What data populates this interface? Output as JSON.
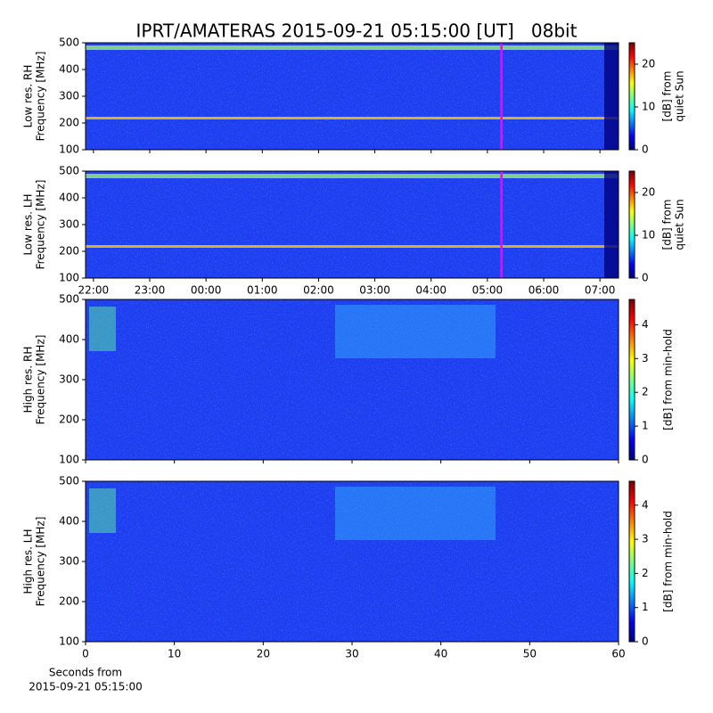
{
  "title": "IPRT/AMATERAS 2015-09-21 05:15:00 [UT]   08bit",
  "chart_data": [
    {
      "type": "spectrogram",
      "ylabel": [
        "Low res. RH",
        "Frequency [MHz]"
      ],
      "ylim": [
        100,
        500
      ],
      "yticks": [
        100,
        200,
        300,
        400,
        500
      ],
      "xlim": [
        21.86,
        31.33
      ],
      "marker_x": 29.25,
      "marker_color": "#ff00ff",
      "colorbar": {
        "label": [
          "[dB] from",
          "quiet Sun"
        ],
        "lim": [
          0,
          25
        ],
        "ticks": [
          0,
          10,
          20
        ]
      }
    },
    {
      "type": "spectrogram",
      "ylabel": [
        "Low res. LH",
        "Frequency [MHz]"
      ],
      "ylim": [
        100,
        500
      ],
      "yticks": [
        100,
        200,
        300,
        400,
        500
      ],
      "xlim": [
        21.86,
        31.33
      ],
      "marker_x": 29.25,
      "marker_color": "#ff00ff",
      "xticks": [
        {
          "value": 22,
          "label": "22:00"
        },
        {
          "value": 23,
          "label": "23:00"
        },
        {
          "value": 24,
          "label": "00:00"
        },
        {
          "value": 25,
          "label": "01:00"
        },
        {
          "value": 26,
          "label": "02:00"
        },
        {
          "value": 27,
          "label": "03:00"
        },
        {
          "value": 28,
          "label": "04:00"
        },
        {
          "value": 29,
          "label": "05:00"
        },
        {
          "value": 30,
          "label": "06:00"
        },
        {
          "value": 31,
          "label": "07:00"
        }
      ],
      "colorbar": {
        "label": [
          "[dB] from",
          "quiet Sun"
        ],
        "lim": [
          0,
          25
        ],
        "ticks": [
          0,
          10,
          20
        ]
      }
    },
    {
      "type": "spectrogram",
      "ylabel": [
        "High res. RH",
        "Frequency [MHz]"
      ],
      "ylim": [
        100,
        500
      ],
      "yticks": [
        100,
        200,
        300,
        400,
        500
      ],
      "xlim": [
        0,
        60
      ],
      "colorbar": {
        "label": [
          "[dB] from min-hold"
        ],
        "lim": [
          0,
          4.75
        ],
        "ticks": [
          0,
          1,
          2,
          3,
          4
        ]
      }
    },
    {
      "type": "spectrogram",
      "ylabel": [
        "High res. LH",
        "Frequency [MHz]"
      ],
      "ylim": [
        100,
        500
      ],
      "yticks": [
        100,
        200,
        300,
        400,
        500
      ],
      "xlim": [
        0,
        60
      ],
      "xticks": [
        0,
        10,
        20,
        30,
        40,
        50,
        60
      ],
      "xlabel": [
        "Seconds from",
        "2015-09-21 05:15:00"
      ],
      "colorbar": {
        "label": [
          "[dB] from min-hold"
        ],
        "lim": [
          0,
          4.7
        ],
        "ticks": [
          0,
          1,
          2,
          3,
          4
        ]
      }
    }
  ]
}
